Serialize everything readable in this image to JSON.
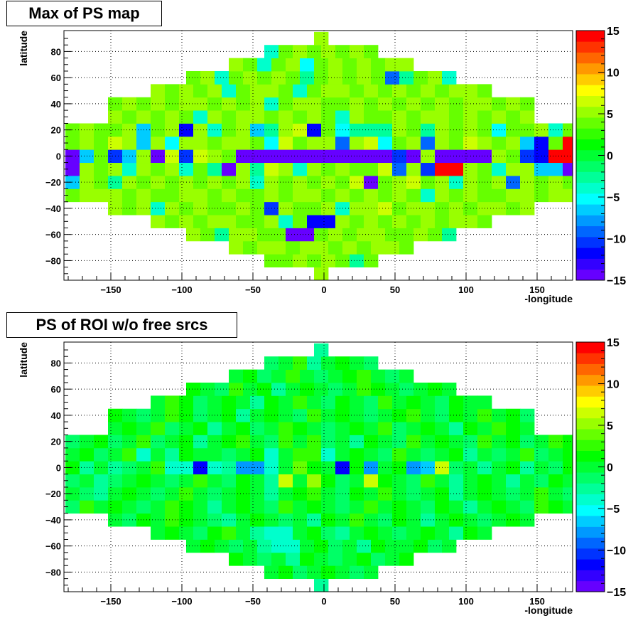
{
  "chart_data": [
    {
      "type": "heatmap",
      "title": "Max of PS map",
      "xlabel": "-longitude",
      "ylabel": "latitude",
      "xlim": [
        -183,
        175
      ],
      "ylim": [
        -95,
        96
      ],
      "zlim": [
        -15,
        15
      ],
      "grid": true,
      "legend": "colorbar-right",
      "x_ticks": [
        -150,
        -100,
        -50,
        0,
        50,
        100,
        150
      ],
      "y_ticks": [
        -80,
        -60,
        -40,
        -20,
        0,
        20,
        40,
        60,
        80
      ],
      "z_ticks": [
        -15,
        -10,
        -5,
        0,
        5,
        10,
        15
      ],
      "bins": {
        "lat_centers": [
          -90,
          -80,
          -70,
          -60,
          -50,
          -40,
          -30,
          -20,
          -10,
          0,
          10,
          20,
          30,
          40,
          50,
          60,
          70,
          80,
          90
        ],
        "row_widths_deg": [
          10,
          80,
          130,
          190,
          240,
          300,
          360,
          360,
          360,
          360,
          360,
          360,
          300,
          300,
          240,
          190,
          130,
          80,
          10
        ],
        "values": [
          [
            5
          ],
          [
            4,
            4,
            5,
            4,
            5,
            4,
            -2,
            4
          ],
          [
            5,
            4,
            5,
            5,
            4,
            5,
            5,
            4,
            5,
            4,
            5,
            5,
            4
          ],
          [
            5,
            4,
            -3,
            5,
            5,
            4,
            4,
            -16,
            -16,
            4,
            5,
            4,
            5,
            5,
            4,
            4,
            5,
            4,
            -3
          ],
          [
            5,
            4,
            5,
            4,
            5,
            5,
            4,
            4,
            5,
            -4,
            4,
            -12,
            -12,
            5,
            4,
            5,
            4,
            5,
            4,
            5,
            4,
            5,
            5,
            4
          ],
          [
            5,
            4,
            5,
            -4,
            5,
            4,
            5,
            4,
            4,
            5,
            4,
            -11,
            5,
            4,
            4,
            5,
            -4,
            5,
            5,
            7,
            4,
            5,
            5,
            4,
            5,
            4,
            5,
            5,
            4,
            5
          ],
          [
            4,
            5,
            5,
            5,
            4,
            5,
            4,
            4,
            5,
            5,
            4,
            5,
            4,
            4,
            5,
            4,
            5,
            5,
            4,
            5,
            4,
            5,
            4,
            5,
            4,
            -4,
            5,
            4,
            5,
            4,
            4,
            5,
            5,
            4,
            5,
            5
          ],
          [
            -7,
            5,
            4,
            -3,
            5,
            4,
            5,
            4,
            5,
            4,
            5,
            4,
            5,
            -4,
            5,
            4,
            5,
            4,
            5,
            4,
            6,
            -15,
            4,
            5,
            6,
            4,
            5,
            -4,
            5,
            4,
            5,
            -9,
            5,
            4,
            5,
            4
          ],
          [
            -15,
            5,
            4,
            5,
            -4,
            5,
            4,
            5,
            -4,
            4,
            -3,
            -16,
            5,
            -3,
            6,
            5,
            -4,
            5,
            4,
            5,
            4,
            4,
            6,
            -9,
            5,
            -11,
            14,
            14,
            5,
            4,
            -4,
            5,
            5,
            -7,
            -7,
            -15
          ],
          [
            -15,
            -6,
            4,
            -11,
            -7,
            5,
            -15,
            6,
            -10,
            6,
            5,
            4,
            -15,
            -15,
            -15,
            -15,
            -15,
            -15,
            -15,
            -15,
            -15,
            -15,
            -15,
            -11,
            -15,
            5,
            -15,
            -15,
            -15,
            -15,
            5,
            4,
            -11,
            -12,
            15,
            15
          ],
          [
            4,
            5,
            4,
            7,
            5,
            -7,
            5,
            -5,
            5,
            5,
            4,
            5,
            5,
            4,
            -5,
            6,
            4,
            5,
            5,
            -9,
            5,
            6,
            -5,
            4,
            5,
            -9,
            5,
            4,
            7,
            5,
            4,
            5,
            -6,
            -12,
            4,
            15
          ],
          [
            4,
            5,
            4,
            4,
            5,
            -7,
            4,
            5,
            -12,
            5,
            -4,
            4,
            5,
            -7,
            -3,
            5,
            6,
            -12,
            4,
            -5,
            -3,
            -3,
            -3,
            5,
            4,
            -3,
            5,
            4,
            5,
            4,
            -5,
            4,
            4,
            5,
            -4,
            4
          ],
          [
            5,
            4,
            5,
            4,
            5,
            4,
            -4,
            5,
            4,
            5,
            5,
            4,
            5,
            4,
            5,
            4,
            -4,
            5,
            4,
            4,
            5,
            4,
            5,
            5,
            4,
            5,
            4,
            5,
            4,
            5
          ],
          [
            4,
            5,
            4,
            5,
            4,
            5,
            5,
            4,
            5,
            4,
            5,
            -4,
            4,
            5,
            5,
            4,
            4,
            5,
            4,
            5,
            4,
            5,
            4,
            5,
            4,
            5,
            5,
            4,
            5,
            4
          ],
          [
            5,
            4,
            5,
            4,
            5,
            -4,
            4,
            5,
            5,
            4,
            -4,
            4,
            5,
            5,
            4,
            5,
            4,
            5,
            4,
            5,
            4,
            5,
            5,
            4
          ],
          [
            4,
            5,
            -4,
            4,
            5,
            4,
            5,
            4,
            -3,
            4,
            5,
            4,
            5,
            4,
            -9,
            -3,
            4,
            5,
            -4
          ],
          [
            5,
            4,
            -4,
            4,
            5,
            -5,
            4,
            5,
            4,
            5,
            4,
            5,
            5
          ],
          [
            -4,
            4,
            5,
            4,
            5,
            4,
            5,
            4
          ],
          [
            5
          ]
        ]
      }
    },
    {
      "type": "heatmap",
      "title": "PS of ROI w/o free srcs",
      "xlabel": "-longitude",
      "ylabel": "latitude",
      "xlim": [
        -183,
        175
      ],
      "ylim": [
        -95,
        96
      ],
      "zlim": [
        -15,
        15
      ],
      "grid": true,
      "legend": "colorbar-right",
      "x_ticks": [
        -150,
        -100,
        -50,
        0,
        50,
        100,
        150
      ],
      "y_ticks": [
        -80,
        -60,
        -40,
        -20,
        0,
        20,
        40,
        60,
        80
      ],
      "z_ticks": [
        -15,
        -10,
        -5,
        0,
        5,
        10,
        15
      ],
      "bins": {
        "lat_centers": [
          -90,
          -80,
          -70,
          -60,
          -50,
          -40,
          -30,
          -20,
          -10,
          0,
          10,
          20,
          30,
          40,
          50,
          60,
          70,
          80,
          90
        ],
        "row_widths_deg": [
          10,
          80,
          130,
          190,
          240,
          300,
          360,
          360,
          360,
          360,
          360,
          360,
          300,
          300,
          240,
          190,
          130,
          80,
          10
        ],
        "values": [
          [
            -2
          ],
          [
            0,
            1,
            -1,
            0,
            1,
            0,
            -1,
            0
          ],
          [
            1,
            0,
            -1,
            0,
            -3,
            1,
            0,
            -1,
            0,
            1,
            -1,
            0,
            1
          ],
          [
            0,
            1,
            0,
            -1,
            0,
            -2,
            -4,
            -4,
            0,
            1,
            -1,
            0,
            -2,
            1,
            0,
            0,
            1,
            -1,
            0
          ],
          [
            0,
            1,
            0,
            -1,
            1,
            2,
            0,
            -3,
            -4,
            -4,
            0,
            1,
            -1,
            -2,
            0,
            1,
            0,
            -1,
            0,
            1,
            0,
            -2,
            1,
            0
          ],
          [
            0,
            -1,
            1,
            0,
            2,
            1,
            0,
            -1,
            -2,
            0,
            1,
            0,
            -1,
            0,
            -3,
            1,
            0,
            2,
            0,
            -1,
            1,
            0,
            -2,
            0,
            1,
            0,
            -1,
            0,
            1,
            0
          ],
          [
            -1,
            2,
            0,
            1,
            0,
            -1,
            0,
            2,
            1,
            0,
            -2,
            0,
            1,
            0,
            -1,
            2,
            0,
            1,
            0,
            -1,
            0,
            2,
            0,
            1,
            0,
            -1,
            1,
            0,
            -2,
            0,
            1,
            0,
            -1,
            2,
            1,
            0
          ],
          [
            0,
            -1,
            -2,
            0,
            1,
            0,
            -1,
            0,
            2,
            0,
            -1,
            0,
            1,
            0,
            -2,
            0,
            1,
            3,
            0,
            -1,
            1,
            0,
            2,
            0,
            -1,
            0,
            1,
            -2,
            0,
            1,
            0,
            -1,
            0,
            2,
            0,
            -1
          ],
          [
            -1,
            0,
            -2,
            -1,
            0,
            1,
            0,
            -1,
            0,
            2,
            0,
            -1,
            1,
            0,
            -2,
            6,
            0,
            5,
            1,
            -1,
            0,
            6,
            1,
            0,
            -1,
            2,
            0,
            -3,
            0,
            1,
            0,
            -2,
            0,
            -1,
            1,
            0
          ],
          [
            1,
            -2,
            0,
            -3,
            -1,
            0,
            2,
            -4,
            -4,
            -12,
            -4,
            -3,
            -8,
            -8,
            -4,
            0,
            4,
            1,
            0,
            -12,
            1,
            -8,
            0,
            1,
            -8,
            -7,
            6,
            -1,
            0,
            -2,
            0,
            1,
            -3,
            0,
            -1,
            1
          ],
          [
            0,
            1,
            -1,
            0,
            2,
            -4,
            0,
            -3,
            1,
            0,
            0,
            -1,
            0,
            1,
            -4,
            0,
            2,
            3,
            -4,
            0,
            1,
            0,
            -1,
            2,
            0,
            -1,
            0,
            1,
            -2,
            0,
            -1,
            0,
            2,
            -1,
            0,
            1
          ],
          [
            -1,
            0,
            1,
            -1,
            0,
            2,
            -1,
            0,
            1,
            -2,
            0,
            1,
            2,
            0,
            -1,
            3,
            0,
            2,
            -1,
            0,
            -2,
            1,
            0,
            -1,
            2,
            0,
            1,
            0,
            -1,
            2,
            0,
            1,
            -1,
            0,
            2,
            1
          ],
          [
            0,
            1,
            0,
            2,
            -1,
            0,
            1,
            -2,
            0,
            1,
            -1,
            0,
            2,
            1,
            0,
            -1,
            0,
            1,
            0,
            2,
            -1,
            0,
            1,
            0,
            -2,
            1,
            0,
            3,
            1,
            0
          ],
          [
            1,
            0,
            -1,
            0,
            2,
            1,
            -1,
            0,
            1,
            -2,
            0,
            1,
            0,
            -1,
            2,
            0,
            1,
            0,
            -1,
            0,
            1,
            2,
            0,
            -1,
            1,
            0,
            2,
            0,
            1,
            -1
          ],
          [
            0,
            2,
            1,
            -1,
            0,
            1,
            0,
            -2,
            1,
            0,
            2,
            0,
            -1,
            1,
            0,
            -1,
            2,
            0,
            1,
            0,
            -1,
            1,
            0,
            0
          ],
          [
            1,
            0,
            -1,
            2,
            0,
            1,
            -2,
            0,
            1,
            0,
            -1,
            0,
            2,
            1,
            0,
            -1,
            0,
            1,
            0
          ],
          [
            0,
            1,
            -1,
            0,
            2,
            0,
            -1,
            0,
            1,
            2,
            0,
            -1,
            0
          ],
          [
            -1,
            0,
            2,
            -2,
            0,
            1,
            0,
            -1
          ],
          [
            -3
          ]
        ]
      }
    }
  ]
}
